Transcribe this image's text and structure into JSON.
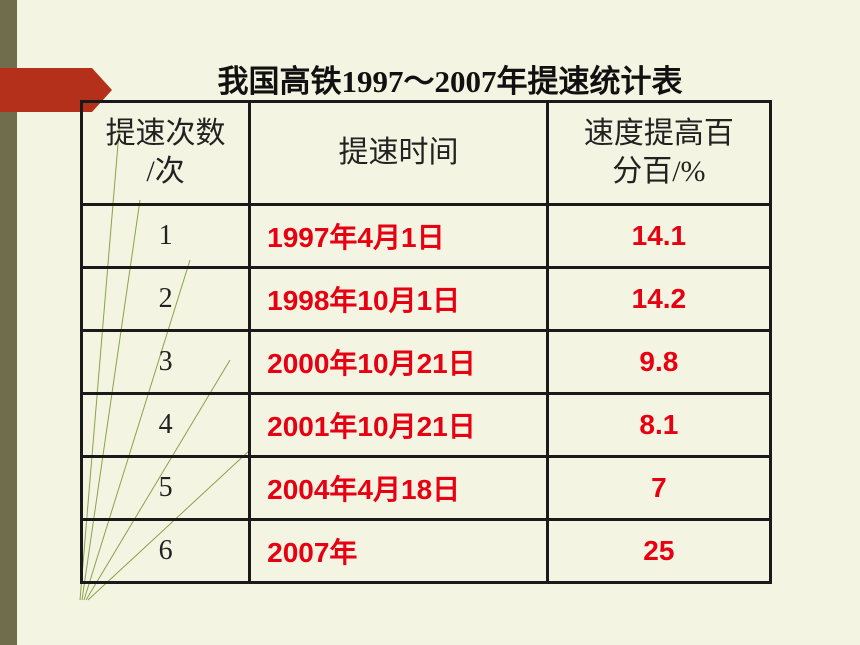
{
  "title": "我国高铁1997～2007年提速统计表",
  "table": {
    "header": [
      [
        "提速次数",
        "/次"
      ],
      [
        "提速时间"
      ],
      [
        "速度提高百",
        "分百/%"
      ]
    ],
    "rows": [
      [
        1,
        "1997年4月1日",
        14.1
      ],
      [
        2,
        "1998年10月1日",
        14.2
      ],
      [
        3,
        "2000年10月21日",
        9.8
      ],
      [
        4,
        "2001年10月21日",
        8.1
      ],
      [
        5,
        "2004年4月18日",
        7
      ],
      [
        6,
        "2007年",
        25
      ]
    ]
  }
}
